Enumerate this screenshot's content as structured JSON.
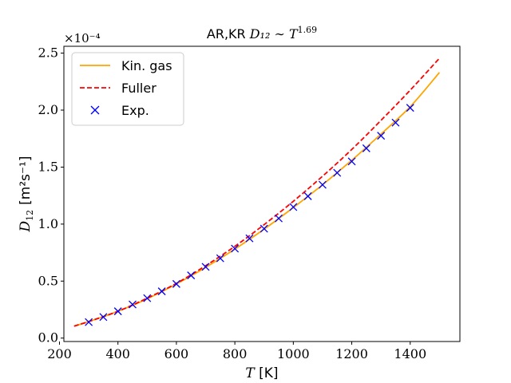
{
  "chart_data": {
    "type": "line",
    "title_prefix": "AR,KR ",
    "title_math": "D₁₂ ∼ T",
    "title_exponent": "1.69",
    "xlabel_var": "T",
    "xlabel_unit": " [K]",
    "ylabel_var": "D",
    "ylabel_sub": "12",
    "ylabel_unit": "[m²s⁻¹]",
    "y_offset_text": "×10⁻⁴",
    "xlim": [
      215,
      1570
    ],
    "ylim": [
      -0.03,
      2.56
    ],
    "x_ticks": [
      200,
      400,
      600,
      800,
      1000,
      1200,
      1400
    ],
    "x_tick_labels": [
      "200",
      "400",
      "600",
      "800",
      "1000",
      "1200",
      "1400"
    ],
    "y_ticks": [
      0.0,
      0.5,
      1.0,
      1.5,
      2.0,
      2.5
    ],
    "y_tick_labels": [
      "0.0",
      "0.5",
      "1.0",
      "1.5",
      "2.0",
      "2.5"
    ],
    "grid": false,
    "legend_position": "top-left",
    "series": [
      {
        "name": "Kin. gas",
        "style": "line",
        "color": "#ffa500",
        "x": [
          250,
          300,
          400,
          500,
          600,
          700,
          800,
          900,
          1000,
          1100,
          1200,
          1300,
          1400,
          1500
        ],
        "values": [
          0.105,
          0.145,
          0.235,
          0.345,
          0.475,
          0.62,
          0.78,
          0.955,
          1.145,
          1.345,
          1.56,
          1.79,
          2.03,
          2.33
        ]
      },
      {
        "name": "Fuller",
        "style": "dashed",
        "color": "#ff0000",
        "x": [
          250,
          300,
          400,
          500,
          600,
          700,
          800,
          900,
          1000,
          1100,
          1200,
          1300,
          1400,
          1500
        ],
        "values": [
          0.105,
          0.145,
          0.235,
          0.35,
          0.48,
          0.635,
          0.805,
          0.995,
          1.2,
          1.42,
          1.655,
          1.91,
          2.175,
          2.455
        ]
      },
      {
        "name": "Exp.",
        "style": "marker-x",
        "color": "#0000ff",
        "x": [
          300,
          350,
          400,
          450,
          500,
          550,
          600,
          650,
          700,
          750,
          800,
          850,
          900,
          950,
          1000,
          1050,
          1100,
          1150,
          1200,
          1250,
          1300,
          1350,
          1400
        ],
        "values": [
          0.14,
          0.185,
          0.235,
          0.295,
          0.35,
          0.41,
          0.475,
          0.55,
          0.625,
          0.7,
          0.785,
          0.875,
          0.96,
          1.05,
          1.15,
          1.245,
          1.345,
          1.45,
          1.55,
          1.665,
          1.775,
          1.89,
          2.02
        ]
      }
    ]
  }
}
